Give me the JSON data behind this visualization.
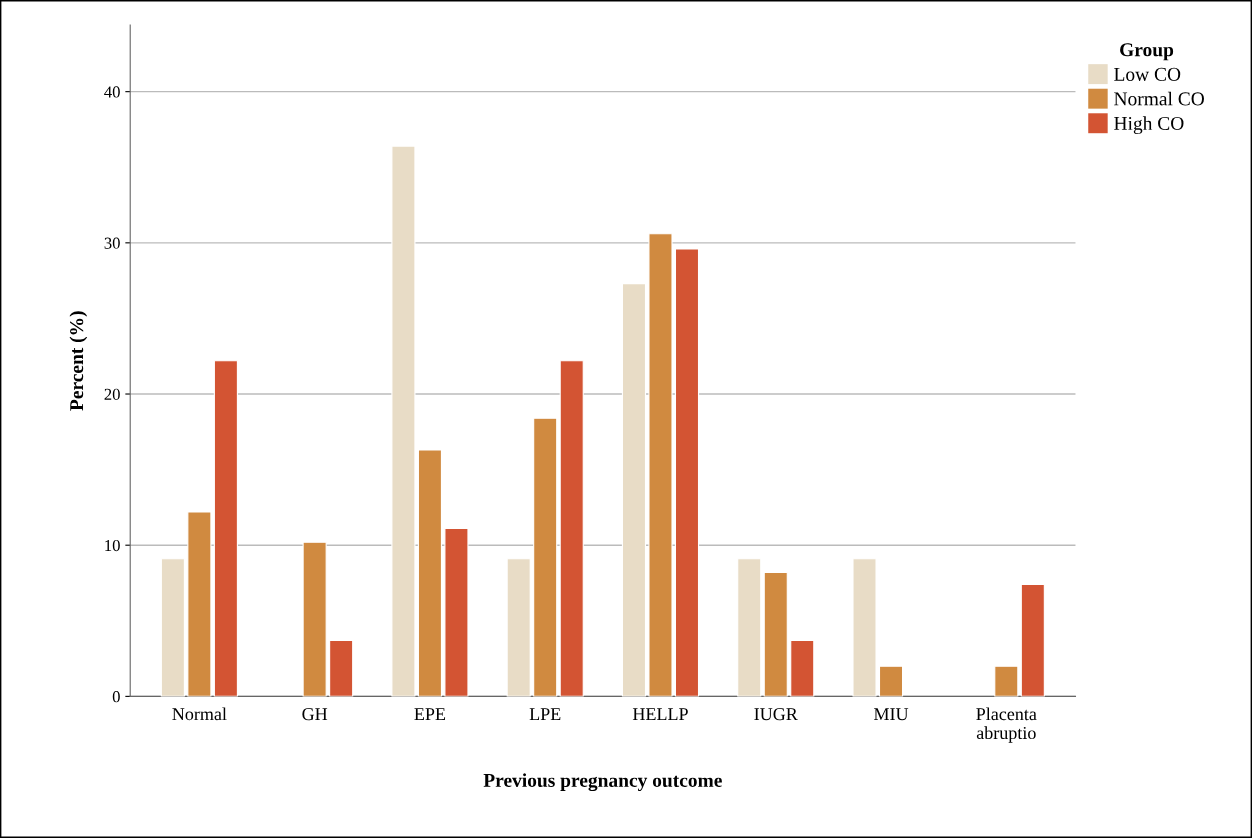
{
  "chart_data": {
    "type": "bar",
    "xlabel": "Previous pregnancy outcome",
    "ylabel": "Percent (%)",
    "legend_title": "Group",
    "categories": [
      "Normal",
      "GH",
      "EPE",
      "LPE",
      "HELLP",
      "IUGR",
      "MIU",
      "Placenta\nabruptio"
    ],
    "series": [
      {
        "name": "Low CO",
        "color": "#e8dcc6",
        "values": [
          9.1,
          null,
          36.4,
          9.1,
          27.3,
          9.1,
          9.1,
          null
        ]
      },
      {
        "name": "Normal CO",
        "color": "#d08a40",
        "values": [
          12.2,
          10.2,
          16.3,
          18.4,
          30.6,
          8.2,
          2.0,
          2.0
        ]
      },
      {
        "name": "High CO",
        "color": "#d35433",
        "values": [
          22.2,
          3.7,
          11.1,
          22.2,
          29.6,
          3.7,
          null,
          7.4
        ]
      }
    ],
    "ylim": [
      0,
      44.4
    ],
    "yticks": [
      0,
      10,
      20,
      30,
      40
    ],
    "grid": "y",
    "legend": "top right"
  }
}
